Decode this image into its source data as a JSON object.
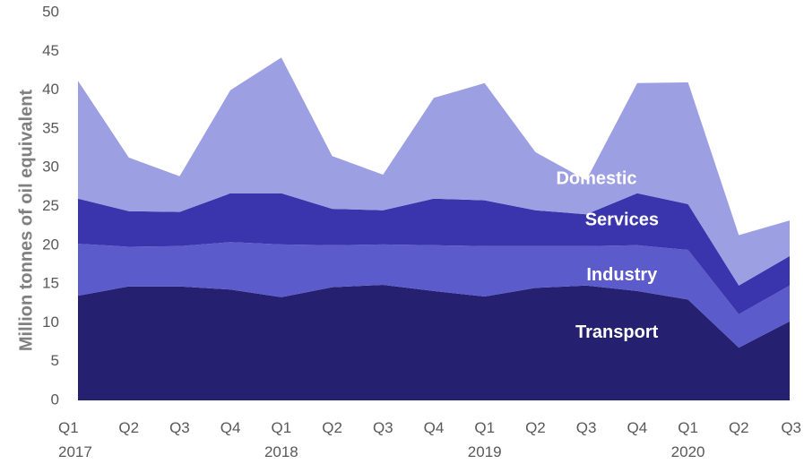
{
  "chart_data": {
    "type": "area",
    "stacked": true,
    "title": "",
    "xlabel": "",
    "ylabel": "Million tonnes of oil equivalent",
    "ylim": [
      0,
      50
    ],
    "yticks": [
      0,
      5,
      10,
      15,
      20,
      25,
      30,
      35,
      40,
      45,
      50
    ],
    "grid": false,
    "legend": "inline labels",
    "categories": [
      "Q1",
      "Q2",
      "Q3",
      "Q4",
      "Q1",
      "Q2",
      "Q3",
      "Q4",
      "Q1",
      "Q2",
      "Q3",
      "Q4",
      "Q1",
      "Q2",
      "Q3"
    ],
    "years": [
      {
        "label": "2017",
        "index": 0
      },
      {
        "label": "2018",
        "index": 4
      },
      {
        "label": "2019",
        "index": 8
      },
      {
        "label": "2020",
        "index": 12
      }
    ],
    "series": [
      {
        "name": "Transport",
        "color": "#252170",
        "values": [
          13.5,
          14.7,
          14.7,
          14.3,
          13.3,
          14.6,
          14.9,
          14.1,
          13.4,
          14.5,
          14.8,
          14.1,
          13.0,
          6.8,
          10.2
        ]
      },
      {
        "name": "Industry",
        "color": "#5b5bcc",
        "values": [
          6.7,
          5.1,
          5.2,
          6.1,
          6.8,
          5.4,
          5.2,
          5.9,
          6.5,
          5.4,
          5.1,
          5.9,
          6.4,
          4.3,
          4.6
        ]
      },
      {
        "name": "Services",
        "color": "#3a35ac",
        "values": [
          5.8,
          4.6,
          4.4,
          6.3,
          6.6,
          4.7,
          4.4,
          6.0,
          5.9,
          4.6,
          4.1,
          6.7,
          5.9,
          3.7,
          3.8
        ]
      },
      {
        "name": "Domestic",
        "color": "#9d9fe3",
        "values": [
          15.2,
          6.9,
          4.6,
          13.3,
          17.5,
          6.8,
          4.6,
          13.0,
          15.1,
          7.5,
          4.4,
          14.2,
          15.7,
          6.5,
          4.6
        ]
      }
    ],
    "labels": [
      {
        "name": "Domestic",
        "x_index": 10.2,
        "y": 28.5
      },
      {
        "name": "Services",
        "x_index": 10.7,
        "y": 23.2
      },
      {
        "name": "Industry",
        "x_index": 10.7,
        "y": 16.1
      },
      {
        "name": "Transport",
        "x_index": 10.6,
        "y": 8.7
      }
    ]
  }
}
